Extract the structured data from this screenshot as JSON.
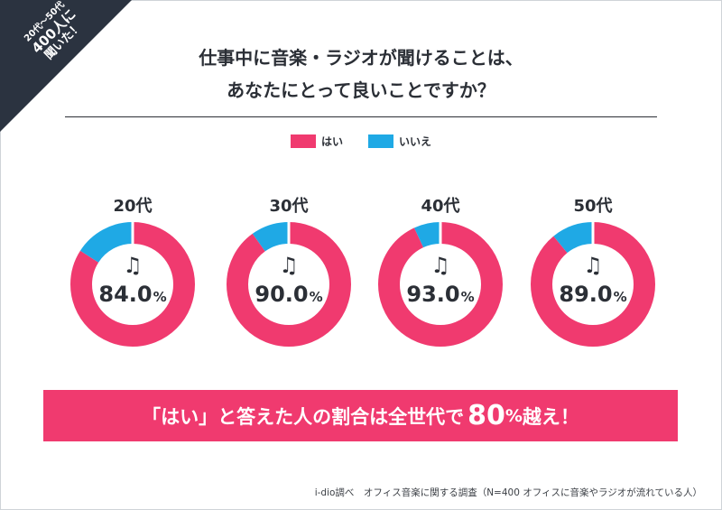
{
  "badge": {
    "line1": "20代〜50代",
    "line2": "400人に",
    "line3": "聞いた！"
  },
  "title_line1": "仕事中に音楽・ラジオが聞けることは、",
  "title_line2": "あなたにとって良いことですか？",
  "colors": {
    "yes": "#f03a6f",
    "no": "#1fa9e5",
    "text": "#2b2f36"
  },
  "chart_data": {
    "type": "pie",
    "legend": [
      "はい",
      "いいえ"
    ],
    "legend_placement": "top-center",
    "groups": [
      {
        "label": "20代",
        "yes": 84.0,
        "no": 16.0,
        "display": "84.0",
        "unit": "%"
      },
      {
        "label": "30代",
        "yes": 90.0,
        "no": 10.0,
        "display": "90.0",
        "unit": "%"
      },
      {
        "label": "40代",
        "yes": 93.0,
        "no": 7.0,
        "display": "93.0",
        "unit": "%"
      },
      {
        "label": "50代",
        "yes": 89.0,
        "no": 11.0,
        "display": "89.0",
        "unit": "%"
      }
    ]
  },
  "icon": "music-note-icon",
  "note_glyph": "♫",
  "banner": {
    "pre": "「はい」と答えた人の割合は全世代で",
    "number": "80",
    "unit": "%",
    "post": "越え！"
  },
  "source": "i-dio調べ　オフィス音楽に関する調査（N=400 オフィスに音楽やラジオが流れている人）"
}
